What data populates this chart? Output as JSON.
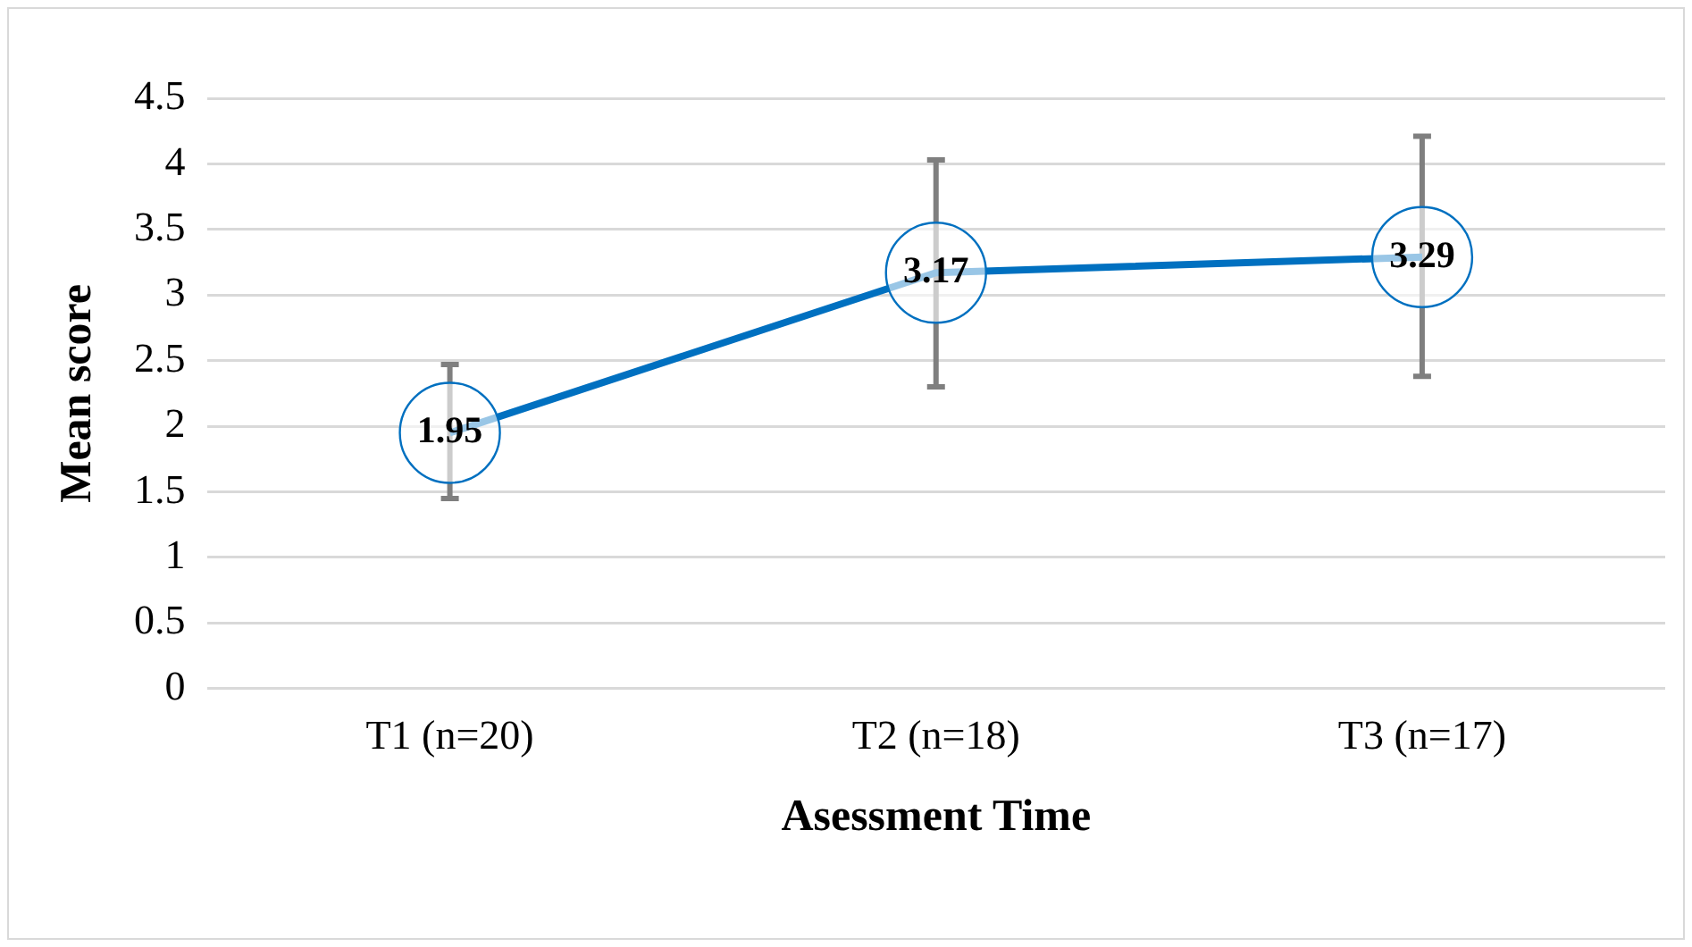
{
  "chart_data": {
    "type": "line",
    "xlabel": "Asessment Time",
    "ylabel": "Mean score",
    "categories": [
      "T1 (n=20)",
      "T2 (n=18)",
      "T3 (n=17)"
    ],
    "series": [
      {
        "color": "#0070c0",
        "values": [
          1.95,
          3.17,
          3.29
        ],
        "errors": [
          [
            1.45,
            2.47
          ],
          [
            2.3,
            4.03
          ],
          [
            2.38,
            4.21
          ]
        ]
      }
    ],
    "ylim": [
      0,
      4.5
    ],
    "yticks": [
      0,
      0.5,
      1,
      1.5,
      2,
      2.5,
      3,
      3.5,
      4,
      4.5
    ],
    "grid": "y",
    "legend": false,
    "line_style": "solid",
    "data_labels": true
  }
}
